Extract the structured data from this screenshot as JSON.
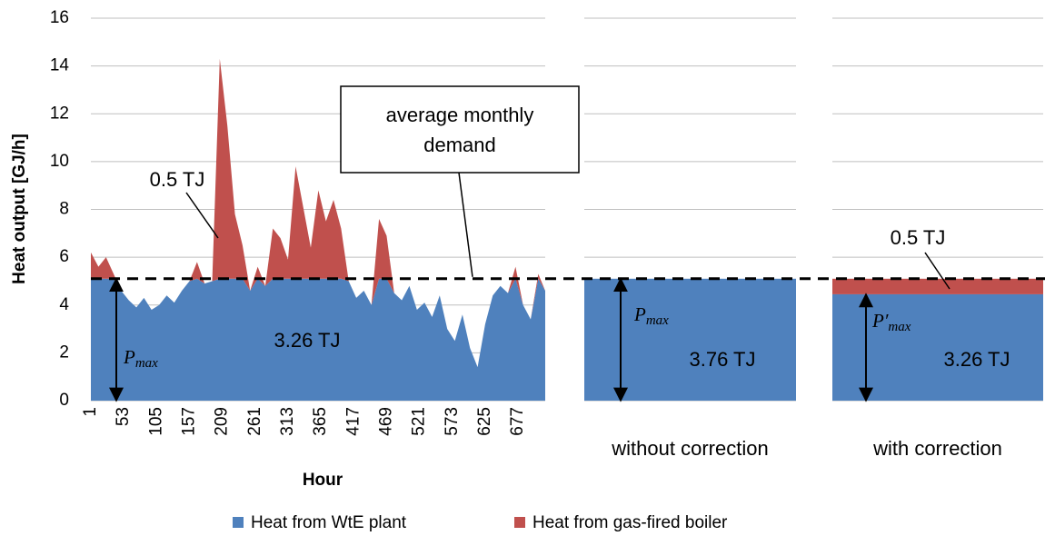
{
  "chart_data": {
    "type": "area",
    "ylabel": "Heat output  [GJ/h]",
    "xlabel": "Hour",
    "ylim": [
      0,
      16
    ],
    "yticks": [
      0,
      2,
      4,
      6,
      8,
      10,
      12,
      14,
      16
    ],
    "xlim": [
      1,
      720
    ],
    "xticks": [
      1,
      53,
      105,
      157,
      209,
      261,
      313,
      365,
      417,
      469,
      521,
      573,
      625,
      677
    ],
    "grid": true,
    "x": [
      1,
      13,
      25,
      37,
      49,
      61,
      73,
      85,
      97,
      109,
      121,
      133,
      145,
      157,
      169,
      181,
      193,
      205,
      217,
      229,
      241,
      253,
      265,
      277,
      289,
      301,
      313,
      325,
      337,
      349,
      361,
      373,
      385,
      397,
      409,
      421,
      433,
      445,
      457,
      469,
      481,
      493,
      505,
      517,
      529,
      541,
      553,
      565,
      577,
      589,
      601,
      613,
      625,
      637,
      649,
      661,
      673,
      685,
      697,
      709,
      720
    ],
    "series": [
      {
        "name": "Heat from WtE plant",
        "color": "#4f81bd",
        "values": [
          5.1,
          5.1,
          5.1,
          5.1,
          4.6,
          4.2,
          3.9,
          4.3,
          3.8,
          4.0,
          4.4,
          4.1,
          4.6,
          5.0,
          5.1,
          4.9,
          5.0,
          5.1,
          5.1,
          5.1,
          5.1,
          4.6,
          5.1,
          4.8,
          5.1,
          5.1,
          5.1,
          5.1,
          5.1,
          5.1,
          5.1,
          5.1,
          5.1,
          5.1,
          5.0,
          4.3,
          4.6,
          4.0,
          5.1,
          5.1,
          4.5,
          4.2,
          4.8,
          3.8,
          4.1,
          3.5,
          4.4,
          3.0,
          2.5,
          3.6,
          2.2,
          1.4,
          3.2,
          4.4,
          4.8,
          4.5,
          5.1,
          4.0,
          3.4,
          5.1,
          4.6
        ]
      },
      {
        "name": "Heat from gas-fired boiler",
        "color": "#c0504d",
        "values": [
          1.1,
          0.5,
          0.9,
          0.2,
          0,
          0,
          0,
          0,
          0,
          0,
          0,
          0,
          0,
          0,
          0.7,
          0,
          0,
          9.2,
          6.4,
          2.7,
          1.4,
          0,
          0.5,
          0,
          2.1,
          1.7,
          0.8,
          4.7,
          3.0,
          1.3,
          3.7,
          2.4,
          3.3,
          2.1,
          0,
          0,
          0,
          0,
          2.5,
          1.8,
          0,
          0,
          0,
          0,
          0,
          0,
          0,
          0,
          0,
          0,
          0,
          0,
          0,
          0,
          0,
          0,
          0.5,
          0,
          0,
          0.2,
          0
        ]
      }
    ],
    "reference_line": {
      "value": 5.1,
      "label": [
        "average monthly",
        "demand"
      ]
    },
    "annotations": {
      "gas": "0.5 TJ",
      "wte": "3.26 TJ",
      "pmax": {
        "base": "P",
        "sub": "max"
      }
    },
    "panels": [
      {
        "label": "without correction",
        "values": [
          5.1,
          0
        ],
        "value_label": "3.76 TJ",
        "pmax": {
          "base": "P",
          "sub": "max"
        }
      },
      {
        "label": "with correction",
        "values": [
          4.45,
          0.65
        ],
        "value_labels": [
          "3.26 TJ",
          "0.5 TJ"
        ],
        "pmax": {
          "base": "P′",
          "sub": "max"
        }
      }
    ]
  }
}
